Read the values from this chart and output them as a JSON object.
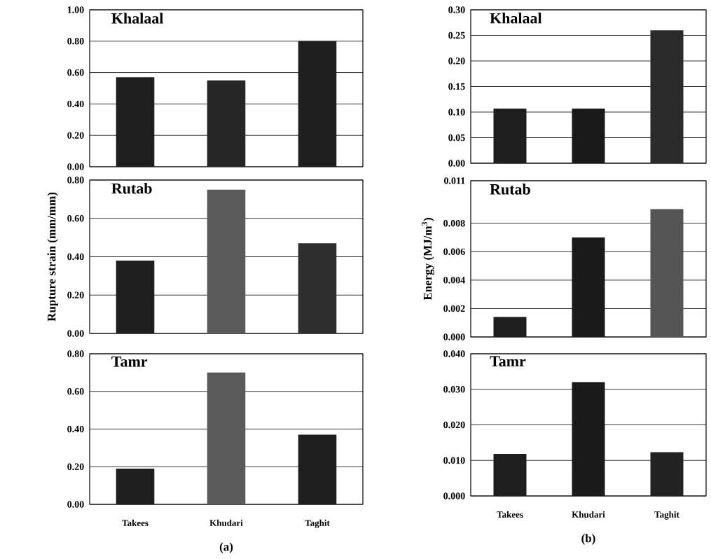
{
  "chart_data": [
    {
      "type": "bar",
      "title": "Khalaal",
      "categories": [
        null,
        null,
        null
      ],
      "values": [
        0.57,
        0.55,
        0.8
      ],
      "colors": [
        "#1e1e1e",
        "#262626",
        "#1e1e1e"
      ],
      "ylim": [
        0,
        1.0
      ],
      "yticks": [
        {
          "value": 0,
          "label": "0.00"
        },
        {
          "value": 0.2,
          "label": "0.20"
        },
        {
          "value": 0.4,
          "label": "0.40"
        },
        {
          "value": 0.6,
          "label": "0.60"
        },
        {
          "value": 0.8,
          "label": "0.80"
        },
        {
          "value": 1.0,
          "label": "1.00"
        }
      ],
      "grid": "y",
      "tick_labels": "y"
    },
    {
      "type": "bar",
      "title": "Khalaal",
      "categories": [
        null,
        null,
        null
      ],
      "values": [
        0.107,
        0.107,
        0.26
      ],
      "colors": [
        "#1e1e1e",
        "#1a1a1a",
        "#2a2a2a"
      ],
      "ylim": [
        0,
        0.3
      ],
      "yticks": [
        {
          "value": 0,
          "label": "0.00"
        },
        {
          "value": 0.05,
          "label": "0.05"
        },
        {
          "value": 0.1,
          "label": "0.10"
        },
        {
          "value": 0.15,
          "label": "0.15"
        },
        {
          "value": 0.2,
          "label": "0.20"
        },
        {
          "value": 0.25,
          "label": "0.25"
        },
        {
          "value": 0.3,
          "label": "0.30"
        }
      ],
      "grid": "y",
      "tick_labels": "y"
    },
    {
      "type": "bar",
      "title": "Rutab",
      "ylabel": "Rupture strain (mm/mm)",
      "categories": [
        null,
        null,
        null
      ],
      "values": [
        0.38,
        0.75,
        0.47
      ],
      "colors": [
        "#1e1e1e",
        "#5a5a5a",
        "#2e2e2e"
      ],
      "ylim": [
        0,
        0.8
      ],
      "yticks": [
        {
          "value": 0,
          "label": "0.00"
        },
        {
          "value": 0.2,
          "label": "0.20"
        },
        {
          "value": 0.4,
          "label": "0.40"
        },
        {
          "value": 0.6,
          "label": "0.60"
        },
        {
          "value": 0.8,
          "label": "0.80"
        }
      ],
      "grid": "y",
      "tick_labels": "y"
    },
    {
      "type": "bar",
      "title": "Rutab",
      "ylabel": "Energy (MJ/m$^{3}$)",
      "categories": [
        null,
        null,
        null
      ],
      "values": [
        0.0014,
        0.007,
        0.009
      ],
      "colors": [
        "#1e1e1e",
        "#1a1a1a",
        "#555555"
      ],
      "ylim": [
        0,
        0.011
      ],
      "yticks": [
        {
          "value": 0,
          "label": "0.000"
        },
        {
          "value": 0.002,
          "label": "0.002"
        },
        {
          "value": 0.004,
          "label": "0.004"
        },
        {
          "value": 0.006,
          "label": "0.006"
        },
        {
          "value": 0.008,
          "label": "0.008"
        },
        {
          "value": 0.011,
          "label": "0.011"
        }
      ],
      "grid": "y",
      "tick_labels": "y"
    },
    {
      "type": "bar",
      "title": "Tamr",
      "annotations": [
        "(a)"
      ],
      "categories": [
        "Takees",
        "Khudari",
        "Taghit"
      ],
      "values": [
        0.19,
        0.7,
        0.37
      ],
      "colors": [
        "#1e1e1e",
        "#5a5a5a",
        "#1e1e1e"
      ],
      "ylim": [
        0,
        0.8
      ],
      "yticks": [
        {
          "value": 0,
          "label": "0.00"
        },
        {
          "value": 0.2,
          "label": "0.20"
        },
        {
          "value": 0.4,
          "label": "0.40"
        },
        {
          "value": 0.6,
          "label": "0.60"
        },
        {
          "value": 0.8,
          "label": "0.80"
        }
      ],
      "grid": "y"
    },
    {
      "type": "bar",
      "title": "Tamr",
      "annotations": [
        "(b)"
      ],
      "categories": [
        "Takees",
        "Khudari",
        "Taghit"
      ],
      "values": [
        0.0118,
        0.032,
        0.0123
      ],
      "colors": [
        "#1e1e1e",
        "#1a1a1a",
        "#222222"
      ],
      "ylim": [
        0,
        0.04
      ],
      "yticks": [
        {
          "value": 0,
          "label": "0.000"
        },
        {
          "value": 0.01,
          "label": "0.010"
        },
        {
          "value": 0.02,
          "label": "0.020"
        },
        {
          "value": 0.03,
          "label": "0.030"
        },
        {
          "value": 0.04,
          "label": "0.040"
        }
      ],
      "grid": "y"
    }
  ]
}
